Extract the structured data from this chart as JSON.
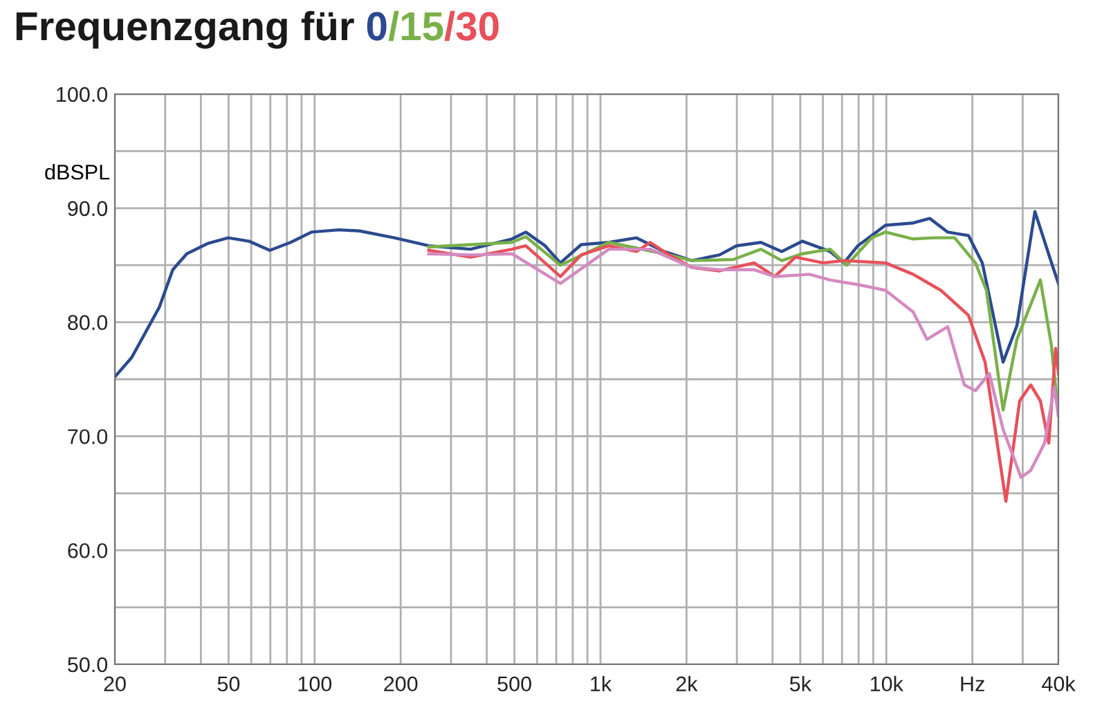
{
  "chart_data": {
    "type": "line",
    "title": "Frequenzgang für",
    "ylabel": "dBSPL",
    "log": "x",
    "grid": true,
    "legend": false,
    "marker": "none",
    "line_style": "solid",
    "xlim": [
      20,
      40000
    ],
    "ylim": [
      50,
      100
    ],
    "xticks": [
      20,
      {
        "value": 30,
        "label": null
      },
      {
        "value": 40,
        "label": null
      },
      50,
      {
        "value": 60,
        "label": null
      },
      {
        "value": 70,
        "label": null
      },
      {
        "value": 80,
        "label": null
      },
      {
        "value": 90,
        "label": null
      },
      100,
      200,
      {
        "value": 300,
        "label": null
      },
      {
        "value": 400,
        "label": null
      },
      500,
      {
        "value": 600,
        "label": null
      },
      {
        "value": 700,
        "label": null
      },
      {
        "value": 800,
        "label": null
      },
      {
        "value": 900,
        "label": null
      },
      {
        "value": 1000,
        "label": "1k"
      },
      {
        "value": 2000,
        "label": "2k"
      },
      {
        "value": 3000,
        "label": null
      },
      {
        "value": 4000,
        "label": null
      },
      {
        "value": 5000,
        "label": "5k"
      },
      {
        "value": 6000,
        "label": null
      },
      {
        "value": 7000,
        "label": null
      },
      {
        "value": 8000,
        "label": null
      },
      {
        "value": 9000,
        "label": null
      },
      {
        "value": 10000,
        "label": "10k"
      },
      {
        "value": 20000,
        "label": "Hz"
      },
      {
        "value": 30000,
        "label": null
      },
      {
        "value": 40000,
        "label": "40k"
      }
    ],
    "yticks": [
      {
        "value": 50,
        "label": "50.0"
      },
      {
        "value": 55,
        "label": null
      },
      {
        "value": 60,
        "label": "60.0"
      },
      {
        "value": 65,
        "label": null
      },
      {
        "value": 70,
        "label": "70.0"
      },
      {
        "value": 75,
        "label": null
      },
      {
        "value": 80,
        "label": "80.0"
      },
      {
        "value": 85,
        "label": null
      },
      {
        "value": 90,
        "label": "90.0"
      },
      {
        "value": 95,
        "label": null
      },
      {
        "value": 100,
        "label": "100.0"
      }
    ],
    "series": [
      {
        "name": "0",
        "color": "#2b4a8f",
        "x": [
          20,
          22.9,
          25.6,
          28.6,
          31.9,
          35.7,
          42.2,
          49.9,
          59,
          69.7,
          82.4,
          97.4,
          121.7,
          143.8,
          190,
          251,
          351,
          490,
          548,
          640,
          724,
          856,
          1070,
          1337,
          1670,
          2087,
          2608,
          2990,
          3643,
          4306,
          5088,
          6361,
          7108,
          7948,
          9932,
          12412,
          14188,
          16400,
          19380,
          21670,
          25620,
          28640,
          33100,
          37840,
          40000
        ],
        "values": [
          75.2,
          76.9,
          79.1,
          81.3,
          84.6,
          86.0,
          86.9,
          87.4,
          87.1,
          86.3,
          87.0,
          87.9,
          88.1,
          88.0,
          87.4,
          86.7,
          86.4,
          87.3,
          87.9,
          86.7,
          85.2,
          86.8,
          87.0,
          87.4,
          86.2,
          85.4,
          85.9,
          86.7,
          87.0,
          86.2,
          87.1,
          86.2,
          85.2,
          86.7,
          88.5,
          88.7,
          89.1,
          87.9,
          87.6,
          85.2,
          76.5,
          79.7,
          89.7,
          85.2,
          83.4
        ]
      },
      {
        "name": "/15",
        "color": "#7ab04a",
        "x": [
          251,
          490,
          548,
          724,
          1070,
          1670,
          2087,
          2915,
          3643,
          4306,
          5088,
          6361,
          7268,
          8888,
          9932,
          12412,
          14670,
          17340,
          20500,
          22400,
          25620,
          28640,
          34600,
          37840,
          40000
        ],
        "values": [
          86.6,
          87.0,
          87.5,
          85.0,
          87.0,
          86.0,
          85.4,
          85.5,
          86.4,
          85.4,
          86.0,
          86.4,
          85.0,
          87.4,
          87.9,
          87.3,
          87.4,
          87.4,
          85.2,
          82.8,
          72.3,
          78.5,
          83.7,
          77.9,
          71.8
        ]
      },
      {
        "name": "/30",
        "color": "#e8505a",
        "x": [
          251,
          351,
          490,
          548,
          724,
          856,
          1070,
          1337,
          1493,
          1765,
          2087,
          2608,
          3447,
          4072,
          4812,
          6016,
          7108,
          9932,
          12412,
          15510,
          19380,
          22160,
          26200,
          29280,
          32000,
          34600,
          37000,
          39120,
          40000
        ],
        "values": [
          86.3,
          85.7,
          86.4,
          86.7,
          84.0,
          85.9,
          86.7,
          86.2,
          87.0,
          85.8,
          84.8,
          84.5,
          85.2,
          84.0,
          85.7,
          85.2,
          85.4,
          85.2,
          84.2,
          82.8,
          80.6,
          76.5,
          64.3,
          73.1,
          74.5,
          73.1,
          69.4,
          77.7,
          75.5
        ]
      },
      {
        "color": "#d48ac0",
        "x": [
          251,
          351,
          490,
          724,
          1070,
          1493,
          2087,
          2608,
          3447,
          4072,
          5380,
          6361,
          7948,
          9932,
          12412,
          13876,
          16400,
          18750,
          20500,
          22920,
          25620,
          29600,
          32000,
          35780,
          38680,
          40000
        ],
        "values": [
          86.0,
          85.9,
          86.0,
          83.4,
          86.4,
          86.4,
          84.8,
          84.6,
          84.6,
          84.0,
          84.2,
          83.7,
          83.3,
          82.8,
          80.9,
          78.5,
          79.6,
          74.5,
          74.0,
          75.5,
          70.6,
          66.4,
          67.0,
          69.4,
          74.3,
          71.8
        ]
      }
    ]
  }
}
